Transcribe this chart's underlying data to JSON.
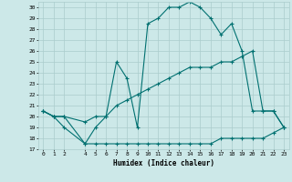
{
  "xlabel": "Humidex (Indice chaleur)",
  "bg_color": "#cce8e8",
  "grid_color": "#aacccc",
  "line_color": "#007070",
  "xlim": [
    -0.5,
    23.5
  ],
  "ylim": [
    17,
    30.5
  ],
  "xticks": [
    0,
    1,
    2,
    4,
    5,
    6,
    7,
    8,
    9,
    10,
    11,
    12,
    13,
    14,
    15,
    16,
    17,
    18,
    19,
    20,
    21,
    22,
    23
  ],
  "yticks": [
    17,
    18,
    19,
    20,
    21,
    22,
    23,
    24,
    25,
    26,
    27,
    28,
    29,
    30
  ],
  "line1_x": [
    0,
    1,
    2,
    4,
    5,
    6,
    7,
    8,
    9,
    10,
    11,
    12,
    13,
    14,
    15,
    16,
    17,
    18,
    19,
    20,
    21,
    22,
    23
  ],
  "line1_y": [
    20.5,
    20.0,
    19.0,
    17.5,
    17.5,
    17.5,
    17.5,
    17.5,
    17.5,
    17.5,
    17.5,
    17.5,
    17.5,
    17.5,
    17.5,
    17.5,
    18.0,
    18.0,
    18.0,
    18.0,
    18.0,
    18.5,
    19.0
  ],
  "line2_x": [
    0,
    1,
    2,
    4,
    5,
    6,
    7,
    8,
    9,
    10,
    11,
    12,
    13,
    14,
    15,
    16,
    17,
    18,
    19,
    20,
    21,
    22,
    23
  ],
  "line2_y": [
    20.5,
    20.0,
    20.0,
    19.5,
    20.0,
    20.0,
    21.0,
    21.5,
    22.0,
    22.5,
    23.0,
    23.5,
    24.0,
    24.5,
    24.5,
    24.5,
    25.0,
    25.0,
    25.5,
    26.0,
    20.5,
    20.5,
    19.0
  ],
  "line3_x": [
    0,
    1,
    2,
    4,
    5,
    6,
    7,
    8,
    9,
    10,
    11,
    12,
    13,
    14,
    15,
    16,
    17,
    18,
    19,
    20,
    21,
    22,
    23
  ],
  "line3_y": [
    20.5,
    20.0,
    20.0,
    17.5,
    19.0,
    20.0,
    25.0,
    23.5,
    19.0,
    28.5,
    29.0,
    30.0,
    30.0,
    30.5,
    30.0,
    29.0,
    27.5,
    28.5,
    26.0,
    20.5,
    20.5,
    20.5,
    19.0
  ],
  "marker": "+",
  "marker_size": 2.5,
  "linewidth": 0.8
}
